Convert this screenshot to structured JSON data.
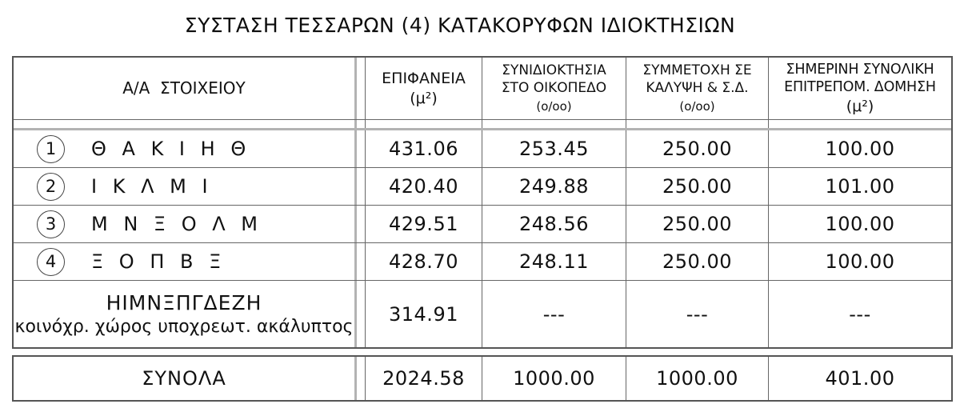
{
  "title": "ΣΥΣΤΑΣΗ ΤΕΣΣΑΡΩΝ (4) ΚΑΤΑΚΟΡΥΦΩΝ ΙΔΙΟΚΤΗΣΙΩΝ",
  "colors": {
    "text": "#111111",
    "rule_dark": "#666666",
    "rule_gray": "#b3b3b3"
  },
  "table": {
    "headers": {
      "col1": "Α/Α  ΣΤΟΙΧΕΙΟΥ",
      "col2_line1": "ΕΠΙΦΑΝΕΙΑ",
      "col2_line2": "(μ²)",
      "col3_line1": "ΣΥΝΙΔΙΟΚΤΗΣΙΑ",
      "col3_line2": "ΣΤΟ ΟΙΚΟΠΕΔΟ",
      "col3_line3": "(ο/οο)",
      "col4_line1": "ΣΥΜΜΕΤΟΧΗ ΣΕ",
      "col4_line2": "ΚΑΛΥΨΗ & Σ.Δ.",
      "col4_line3": "(ο/οο)",
      "col5_line1": "ΣΗΜΕΡΙΝΗ ΣΥΝΟΛΙΚΗ",
      "col5_line2": "ΕΠΙΤΡΕΠΟΜ. ΔΟΜΗΣΗ",
      "col5_line3": "(μ²)"
    },
    "rows": [
      {
        "num": "1",
        "label": "Θ Α Κ Ι Η Θ",
        "surface": "431.06",
        "plot_share": "253.45",
        "coverage_share": "250.00",
        "allowed_build": "100.00"
      },
      {
        "num": "2",
        "label": "Ι Κ Λ Μ Ι",
        "surface": "420.40",
        "plot_share": "249.88",
        "coverage_share": "250.00",
        "allowed_build": "101.00"
      },
      {
        "num": "3",
        "label": "Μ Ν Ξ Ο Λ Μ",
        "surface": "429.51",
        "plot_share": "248.56",
        "coverage_share": "250.00",
        "allowed_build": "100.00"
      },
      {
        "num": "4",
        "label": "Ξ Ο Π Β Ξ",
        "surface": "428.70",
        "plot_share": "248.11",
        "coverage_share": "250.00",
        "allowed_build": "100.00"
      }
    ],
    "common_row": {
      "label_line1": "ΗΙΜΝΞΠΓΔΕΖΗ",
      "label_line2": "κοινόχρ. χώρος υποχρεωτ. ακάλυπτος",
      "surface": "314.91",
      "plot_share": "---",
      "coverage_share": "---",
      "allowed_build": "---"
    },
    "totals": {
      "label": "ΣΥΝΟΛΑ",
      "surface": "2024.58",
      "plot_share": "1000.00",
      "coverage_share": "1000.00",
      "allowed_build": "401.00"
    }
  }
}
